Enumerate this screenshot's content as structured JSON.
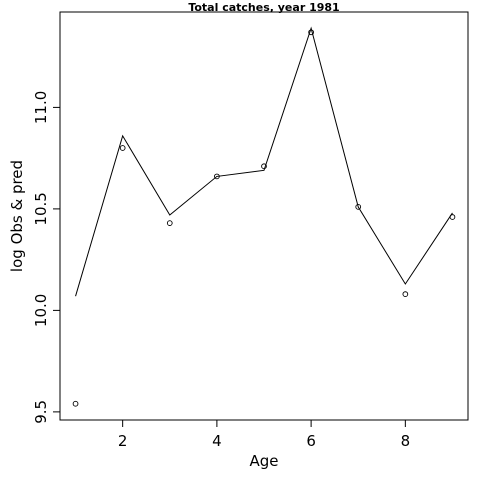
{
  "chart_data": {
    "type": "line",
    "title": "Total catches, year 1981",
    "xlabel": "Age",
    "ylabel": "log Obs & pred",
    "xlim": [
      0.67,
      9.33
    ],
    "ylim": [
      9.46,
      11.47
    ],
    "x_ticks": [
      2,
      4,
      6,
      8
    ],
    "y_ticks": [
      9.5,
      10.0,
      10.5,
      11.0
    ],
    "x_tick_labels": [
      "2",
      "4",
      "6",
      "8"
    ],
    "y_tick_labels": [
      "9.5",
      "10.0",
      "10.5",
      "11.0"
    ],
    "grid": false,
    "series": [
      {
        "style": "line",
        "x": [
          1,
          2,
          3,
          4,
          5,
          6,
          7,
          8,
          9
        ],
        "values": [
          10.07,
          10.86,
          10.47,
          10.66,
          10.69,
          11.39,
          10.51,
          10.13,
          10.48
        ]
      },
      {
        "style": "points",
        "x": [
          1,
          2,
          3,
          4,
          5,
          6,
          7,
          8,
          9
        ],
        "values": [
          9.54,
          10.8,
          10.43,
          10.66,
          10.71,
          11.37,
          10.51,
          10.08,
          10.46
        ]
      }
    ]
  }
}
